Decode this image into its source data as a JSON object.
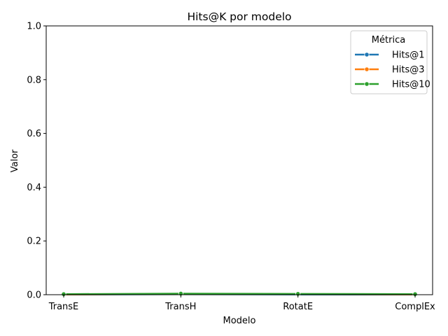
{
  "chart_data": {
    "type": "line",
    "title": "Hits@K por modelo",
    "xlabel": "Modelo",
    "ylabel": "Valor",
    "categories": [
      "TransE",
      "TransH",
      "RotatE",
      "ComplEx"
    ],
    "ylim": [
      0,
      1
    ],
    "yticks": [
      "0.0",
      "0.2",
      "0.4",
      "0.6",
      "0.8",
      "1.0"
    ],
    "grid": false,
    "legend": {
      "title": "Métrica",
      "placement": "top-right"
    },
    "series": [
      {
        "name": "Hits@1",
        "color": "#1f77b4",
        "values": [
          0.0005,
          0.002,
          0.001,
          0.0005
        ]
      },
      {
        "name": "Hits@3",
        "color": "#ff7f0e",
        "values": [
          0.001,
          0.003,
          0.002,
          0.001
        ]
      },
      {
        "name": "Hits@10",
        "color": "#2ca02c",
        "values": [
          0.002,
          0.004,
          0.003,
          0.002
        ]
      }
    ]
  }
}
